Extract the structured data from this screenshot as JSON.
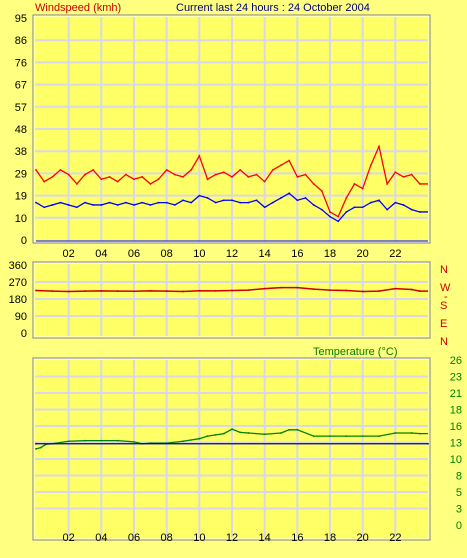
{
  "header": {
    "title": "Current last 24 hours : 24 October 2004"
  },
  "colors": {
    "background": "#FFFF80",
    "plot_background": "#FFFF66",
    "grid": "#D8D8E8",
    "gust": "#FF0000",
    "average": "#0000FF",
    "direction": "#CC0000",
    "temperature": "#008000",
    "temperature_ref": "#000080",
    "axis_text": "#000000"
  },
  "chart_data": [
    {
      "type": "line",
      "title": "Windspeed (kmh)",
      "ylabel": "Windspeed (kmh)",
      "ylim": [
        0,
        95
      ],
      "yticks": [
        "95",
        "86",
        "76",
        "67",
        "57",
        "48",
        "38",
        "29",
        "19",
        "10",
        "0"
      ],
      "xlim": [
        0,
        24
      ],
      "xticks": [
        "02",
        "04",
        "06",
        "08",
        "10",
        "12",
        "14",
        "16",
        "18",
        "20",
        "22"
      ],
      "grid": true,
      "series": [
        {
          "color": "#FF0000",
          "x": [
            0,
            0.5,
            1,
            1.5,
            2,
            2.5,
            3,
            3.5,
            4,
            4.5,
            5,
            5.5,
            6,
            6.5,
            7,
            7.5,
            8,
            8.5,
            9,
            9.5,
            10,
            10.5,
            11,
            11.5,
            12,
            12.5,
            13,
            13.5,
            14,
            14.5,
            15,
            15.5,
            16,
            16.5,
            17,
            17.5,
            18,
            18.5,
            19,
            19.5,
            20,
            20.5,
            21,
            21.5,
            22,
            22.5,
            23,
            23.5
          ],
          "values": [
            30,
            25,
            27,
            30,
            28,
            24,
            28,
            30,
            26,
            27,
            25,
            28,
            26,
            27,
            24,
            26,
            30,
            28,
            27,
            30,
            36,
            26,
            28,
            29,
            27,
            30,
            27,
            28,
            25,
            30,
            32,
            34,
            27,
            28,
            24,
            21,
            12,
            10,
            18,
            24,
            22,
            32,
            40,
            24,
            29,
            27,
            28,
            24
          ]
        },
        {
          "color": "#0000FF",
          "x": [
            0,
            0.5,
            1,
            1.5,
            2,
            2.5,
            3,
            3.5,
            4,
            4.5,
            5,
            5.5,
            6,
            6.5,
            7,
            7.5,
            8,
            8.5,
            9,
            9.5,
            10,
            10.5,
            11,
            11.5,
            12,
            12.5,
            13,
            13.5,
            14,
            14.5,
            15,
            15.5,
            16,
            16.5,
            17,
            17.5,
            18,
            18.5,
            19,
            19.5,
            20,
            20.5,
            21,
            21.5,
            22,
            22.5,
            23,
            23.5
          ],
          "values": [
            16,
            14,
            15,
            16,
            15,
            14,
            16,
            15,
            15,
            16,
            15,
            16,
            15,
            16,
            15,
            16,
            16,
            15,
            17,
            16,
            19,
            18,
            16,
            17,
            17,
            16,
            16,
            17,
            14,
            16,
            18,
            20,
            17,
            18,
            15,
            13,
            10,
            8,
            12,
            14,
            14,
            16,
            17,
            13,
            16,
            15,
            13,
            12
          ]
        }
      ]
    },
    {
      "type": "line",
      "ylim": [
        0,
        360
      ],
      "yticks": [
        "360",
        "270",
        "180",
        "90",
        "0"
      ],
      "right_labels": [
        "N",
        "W",
        "S",
        "E",
        "N"
      ],
      "xlim": [
        0,
        24
      ],
      "xticks": [],
      "grid": true,
      "series": [
        {
          "color": "#CC0000",
          "x": [
            0,
            1,
            2,
            3,
            4,
            5,
            6,
            7,
            8,
            9,
            10,
            11,
            12,
            13,
            14,
            15,
            16,
            17,
            18,
            19,
            20,
            21,
            22,
            23,
            23.5
          ],
          "values": [
            225,
            222,
            220,
            222,
            223,
            222,
            221,
            223,
            222,
            220,
            224,
            223,
            225,
            227,
            235,
            240,
            240,
            232,
            227,
            225,
            220,
            222,
            235,
            230,
            222
          ]
        }
      ]
    },
    {
      "type": "line",
      "title": "Temperature (°C)",
      "ylabel": "Temperature (°C)",
      "ylim": [
        0,
        26
      ],
      "yticks": [
        "26",
        "23",
        "21",
        "18",
        "16",
        "13",
        "10",
        "8",
        "5",
        "3",
        "0"
      ],
      "xlim": [
        0,
        24
      ],
      "xticks": [
        "02",
        "04",
        "06",
        "08",
        "10",
        "12",
        "14",
        "16",
        "18",
        "20",
        "22"
      ],
      "grid": true,
      "series": [
        {
          "color": "#008000",
          "x": [
            0,
            0.3,
            0.6,
            1,
            2,
            3,
            4,
            5,
            6,
            6.5,
            7,
            8,
            9,
            10,
            10.5,
            11,
            11.5,
            12,
            12.5,
            13,
            14,
            15,
            15.5,
            16,
            17,
            18,
            19,
            20,
            21,
            22,
            23,
            23.5
          ],
          "values": [
            12,
            12.2,
            12.7,
            12.8,
            13.2,
            13.3,
            13.3,
            13.3,
            13.1,
            12.8,
            12.9,
            12.9,
            13.2,
            13.6,
            14,
            14.2,
            14.4,
            15.1,
            14.6,
            14.5,
            14.3,
            14.5,
            15,
            15,
            14,
            14,
            14,
            14,
            14,
            14.5,
            14.5,
            14.4
          ]
        },
        {
          "color": "#000080",
          "x": [
            0,
            24
          ],
          "values": [
            12.8,
            12.8
          ]
        }
      ]
    }
  ]
}
